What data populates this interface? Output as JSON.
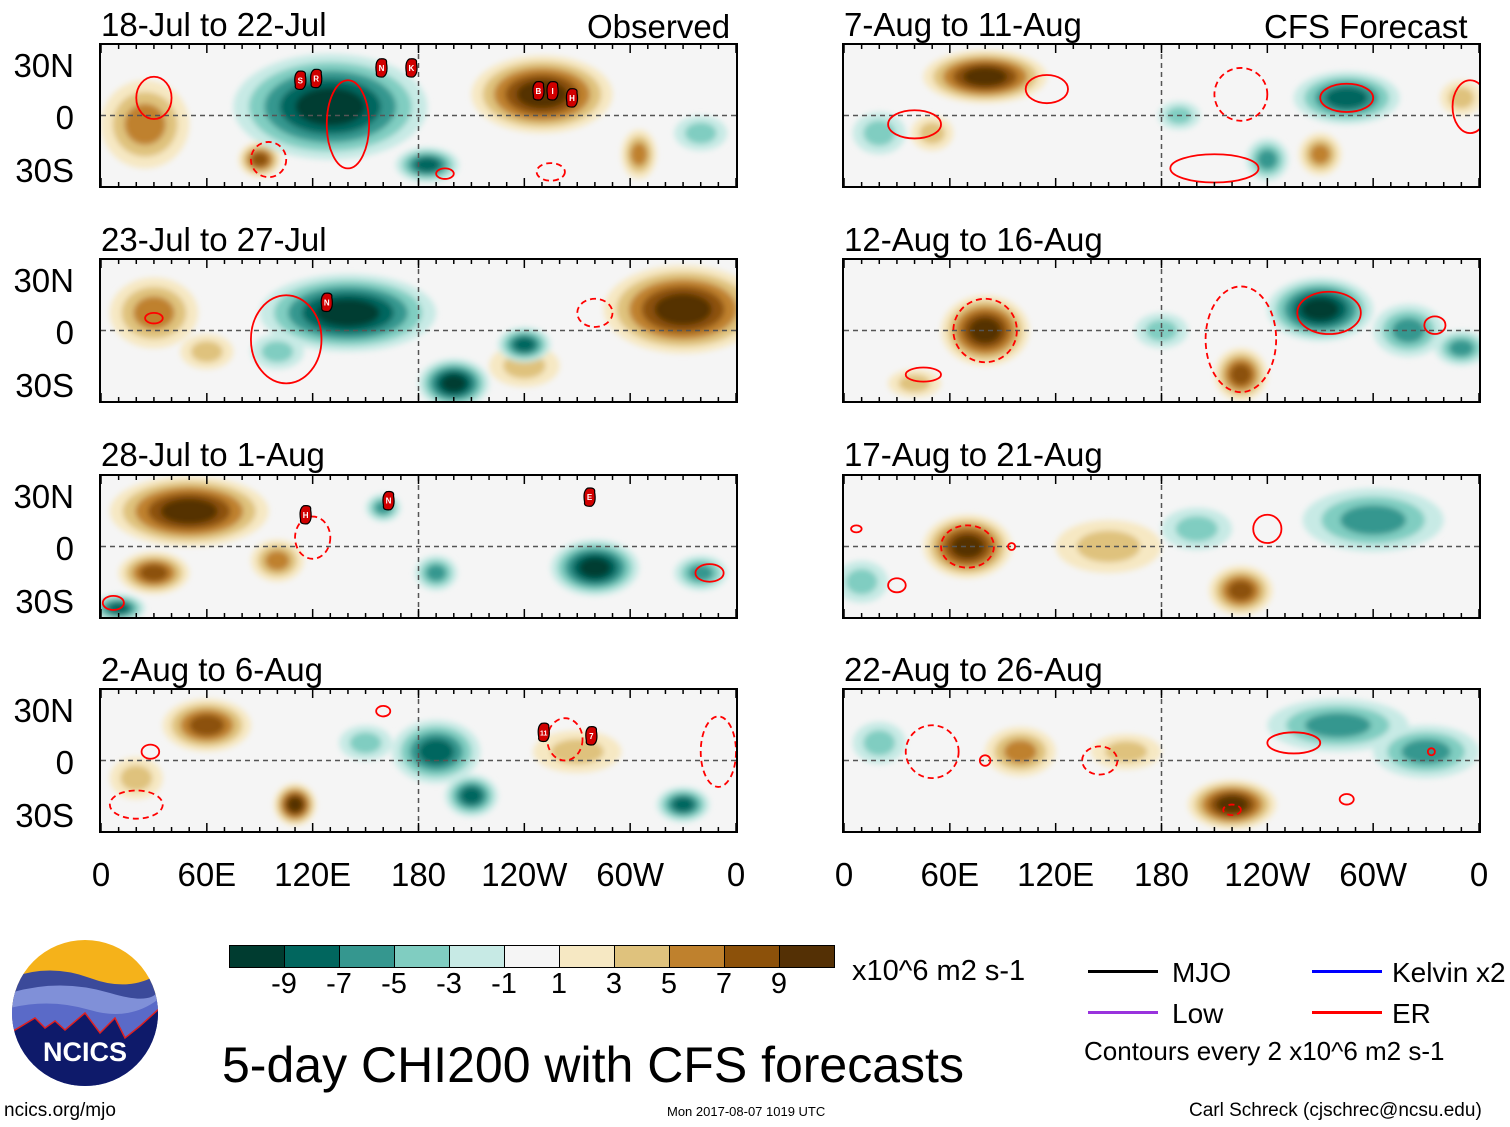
{
  "header": {
    "observed_label": "Observed",
    "forecast_label": "CFS Forecast"
  },
  "lat_labels": [
    "30N",
    "0",
    "30S"
  ],
  "lon_labels": [
    "0",
    "60E",
    "120E",
    "180",
    "120W",
    "60W",
    "0"
  ],
  "colorbar": {
    "colors": [
      "#003c30",
      "#01665e",
      "#35978f",
      "#80cdc1",
      "#c7eae5",
      "#f5f5f5",
      "#f6e8c3",
      "#dfc27d",
      "#bf812d",
      "#8c510a",
      "#543005"
    ],
    "ticks": [
      "-9",
      "-7",
      "-5",
      "-3",
      "-1",
      "1",
      "3",
      "5",
      "7",
      "9"
    ],
    "units": "x10^6 m2 s-1"
  },
  "legend": {
    "items": [
      {
        "label": "MJO",
        "color": "#000000"
      },
      {
        "label": "Kelvin x2",
        "color": "#0000ff"
      },
      {
        "label": "Low",
        "color": "#9933dd"
      },
      {
        "label": "ER",
        "color": "#ff0000"
      }
    ],
    "contour_note": "Contours every 2 x10^6 m2 s-1"
  },
  "title": "5-day CHI200 with CFS forecasts",
  "logo": {
    "text": "NCICS"
  },
  "footer": {
    "url": "ncics.org/mjo",
    "timestamp": "Mon 2017-08-07 1019 UTC",
    "author": "Carl Schreck (cjschrec@ncsu.edu)"
  },
  "panels": [
    {
      "title": "18-Jul to 22-Jul",
      "anomalies": [
        [
          25,
          -5,
          25,
          25,
          5
        ],
        [
          90,
          -25,
          12,
          10,
          7
        ],
        [
          250,
          12,
          40,
          22,
          9
        ],
        [
          305,
          -22,
          10,
          14,
          5
        ],
        [
          130,
          5,
          55,
          30,
          -9
        ],
        [
          185,
          -28,
          18,
          10,
          -7
        ],
        [
          340,
          -10,
          15,
          10,
          -3
        ]
      ],
      "er_contours": [
        [
          30,
          10,
          10,
          12,
          0
        ],
        [
          140,
          -5,
          12,
          25,
          0
        ],
        [
          95,
          -25,
          10,
          10,
          1
        ],
        [
          195,
          -33,
          5,
          3,
          0
        ],
        [
          255,
          -32,
          8,
          5,
          1
        ]
      ],
      "storms": [
        [
          113,
          20,
          "S"
        ],
        [
          122,
          21,
          "R"
        ],
        [
          159,
          27,
          "N"
        ],
        [
          176,
          27,
          "K"
        ],
        [
          248,
          14,
          "B"
        ],
        [
          256,
          14,
          "I"
        ],
        [
          267,
          10,
          "H"
        ]
      ]
    },
    {
      "title": "23-Jul to 27-Jul",
      "anomalies": [
        [
          30,
          10,
          25,
          20,
          5
        ],
        [
          60,
          -12,
          15,
          10,
          3
        ],
        [
          330,
          12,
          45,
          25,
          9
        ],
        [
          240,
          -20,
          20,
          12,
          3
        ],
        [
          140,
          10,
          50,
          22,
          -9
        ],
        [
          200,
          -30,
          20,
          14,
          -9
        ],
        [
          240,
          -8,
          15,
          10,
          -7
        ],
        [
          100,
          -12,
          15,
          10,
          -3
        ]
      ],
      "er_contours": [
        [
          105,
          -5,
          20,
          25,
          0
        ],
        [
          30,
          7,
          5,
          3,
          0
        ],
        [
          280,
          10,
          10,
          8,
          1
        ]
      ],
      "storms": [
        [
          128,
          16,
          "N"
        ]
      ]
    },
    {
      "title": "28-Jul to 1-Aug",
      "anomalies": [
        [
          50,
          20,
          45,
          20,
          9
        ],
        [
          100,
          -8,
          15,
          12,
          5
        ],
        [
          30,
          -15,
          20,
          12,
          7
        ],
        [
          280,
          -12,
          25,
          16,
          -9
        ],
        [
          190,
          -15,
          12,
          10,
          -5
        ],
        [
          10,
          -35,
          15,
          8,
          -7
        ],
        [
          340,
          -15,
          15,
          10,
          -5
        ],
        [
          160,
          22,
          10,
          8,
          -5
        ]
      ],
      "er_contours": [
        [
          345,
          -15,
          8,
          5,
          0
        ],
        [
          7,
          -32,
          6,
          4,
          0
        ],
        [
          120,
          5,
          10,
          12,
          1
        ]
      ],
      "storms": [
        [
          116,
          18,
          "H"
        ],
        [
          163,
          26,
          "N"
        ],
        [
          277,
          28,
          "E"
        ]
      ]
    },
    {
      "title": "2-Aug to 6-Aug",
      "anomalies": [
        [
          60,
          20,
          25,
          15,
          7
        ],
        [
          110,
          -25,
          12,
          12,
          9
        ],
        [
          270,
          5,
          25,
          12,
          3
        ],
        [
          20,
          -10,
          15,
          12,
          3
        ],
        [
          190,
          5,
          25,
          18,
          -7
        ],
        [
          210,
          -20,
          15,
          12,
          -7
        ],
        [
          330,
          -25,
          15,
          10,
          -7
        ],
        [
          150,
          10,
          15,
          10,
          -3
        ]
      ],
      "er_contours": [
        [
          263,
          12,
          10,
          12,
          1
        ],
        [
          28,
          5,
          5,
          4,
          0
        ],
        [
          160,
          28,
          4,
          3,
          0
        ],
        [
          20,
          -25,
          15,
          8,
          1
        ],
        [
          350,
          5,
          10,
          20,
          1
        ]
      ],
      "storms": [
        [
          251,
          16,
          "11"
        ],
        [
          278,
          14,
          "7"
        ]
      ]
    },
    {
      "title": "7-Aug to 11-Aug",
      "anomalies": [
        [
          80,
          22,
          35,
          15,
          9
        ],
        [
          50,
          -10,
          12,
          10,
          3
        ],
        [
          270,
          -22,
          12,
          12,
          5
        ],
        [
          350,
          10,
          12,
          10,
          3
        ],
        [
          285,
          10,
          30,
          15,
          -7
        ],
        [
          240,
          -25,
          12,
          12,
          -5
        ],
        [
          190,
          0,
          12,
          8,
          -3
        ],
        [
          20,
          -10,
          15,
          12,
          -3
        ]
      ],
      "er_contours": [
        [
          115,
          15,
          12,
          8,
          0
        ],
        [
          225,
          12,
          15,
          15,
          1
        ],
        [
          285,
          10,
          15,
          8,
          0
        ],
        [
          355,
          5,
          10,
          15,
          0
        ],
        [
          210,
          -30,
          25,
          8,
          0
        ],
        [
          40,
          -5,
          15,
          8,
          0
        ]
      ],
      "storms": []
    },
    {
      "title": "12-Aug to 16-Aug",
      "anomalies": [
        [
          80,
          0,
          25,
          20,
          9
        ],
        [
          225,
          -25,
          15,
          15,
          7
        ],
        [
          40,
          -30,
          15,
          8,
          3
        ],
        [
          270,
          12,
          30,
          18,
          -9
        ],
        [
          320,
          0,
          20,
          15,
          -5
        ],
        [
          180,
          0,
          15,
          10,
          -3
        ],
        [
          350,
          -10,
          15,
          10,
          -5
        ]
      ],
      "er_contours": [
        [
          80,
          0,
          18,
          18,
          1
        ],
        [
          275,
          10,
          18,
          12,
          0
        ],
        [
          335,
          3,
          6,
          5,
          0
        ],
        [
          45,
          -25,
          10,
          4,
          0
        ],
        [
          225,
          -5,
          20,
          30,
          1
        ]
      ],
      "storms": []
    },
    {
      "title": "17-Aug to 21-Aug",
      "anomalies": [
        [
          70,
          0,
          25,
          18,
          9
        ],
        [
          225,
          -25,
          18,
          14,
          7
        ],
        [
          150,
          0,
          30,
          15,
          3
        ],
        [
          300,
          15,
          40,
          18,
          -5
        ],
        [
          200,
          10,
          20,
          12,
          -3
        ],
        [
          10,
          -20,
          15,
          12,
          -3
        ]
      ],
      "er_contours": [
        [
          70,
          0,
          15,
          12,
          1
        ],
        [
          240,
          10,
          8,
          8,
          0
        ],
        [
          30,
          -22,
          5,
          4,
          0
        ],
        [
          95,
          0,
          2,
          2,
          0
        ],
        [
          7,
          10,
          3,
          2,
          0
        ]
      ],
      "storms": []
    },
    {
      "title": "22-Aug to 26-Aug",
      "anomalies": [
        [
          220,
          -25,
          25,
          14,
          9
        ],
        [
          100,
          5,
          20,
          14,
          5
        ],
        [
          160,
          5,
          20,
          10,
          3
        ],
        [
          280,
          20,
          40,
          15,
          -5
        ],
        [
          330,
          5,
          30,
          15,
          -5
        ],
        [
          20,
          10,
          15,
          12,
          -3
        ]
      ],
      "er_contours": [
        [
          255,
          10,
          15,
          6,
          0
        ],
        [
          50,
          5,
          15,
          15,
          1
        ],
        [
          80,
          0,
          3,
          3,
          0
        ],
        [
          145,
          0,
          10,
          8,
          1
        ],
        [
          220,
          -28,
          5,
          3,
          1
        ],
        [
          285,
          -22,
          4,
          3,
          0
        ],
        [
          333,
          5,
          2,
          2,
          0
        ]
      ],
      "storms": []
    }
  ]
}
